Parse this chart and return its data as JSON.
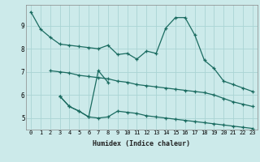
{
  "xlabel": "Humidex (Indice chaleur)",
  "bg_color": "#cceaea",
  "line_color": "#1a6b60",
  "grid_color": "#aad4d4",
  "xlim": [
    -0.5,
    23.5
  ],
  "ylim": [
    4.5,
    9.9
  ],
  "yticks": [
    5,
    6,
    7,
    8,
    9
  ],
  "xticks": [
    0,
    1,
    2,
    3,
    4,
    5,
    6,
    7,
    8,
    9,
    10,
    11,
    12,
    13,
    14,
    15,
    16,
    17,
    18,
    19,
    20,
    21,
    22,
    23
  ],
  "line1_x": [
    0,
    1,
    2,
    3,
    4,
    5,
    6,
    7,
    8,
    9,
    10,
    11,
    12,
    13,
    14,
    15,
    16,
    17,
    18,
    19,
    20,
    21,
    22,
    23
  ],
  "line1_y": [
    9.6,
    8.85,
    8.5,
    8.2,
    8.15,
    8.1,
    8.05,
    8.0,
    8.15,
    7.75,
    7.8,
    7.55,
    7.9,
    7.8,
    8.9,
    9.35,
    9.35,
    8.6,
    7.5,
    7.15,
    6.6,
    6.45,
    6.3,
    6.15
  ],
  "line2_x": [
    2,
    3,
    4,
    5,
    6,
    7,
    8,
    9,
    10,
    11,
    12,
    13,
    14,
    15,
    16,
    17,
    18,
    19,
    20,
    21,
    22,
    23
  ],
  "line2_y": [
    7.05,
    7.0,
    6.95,
    6.85,
    6.8,
    6.75,
    6.7,
    6.6,
    6.55,
    6.45,
    6.4,
    6.35,
    6.3,
    6.25,
    6.2,
    6.15,
    6.1,
    6.0,
    5.85,
    5.7,
    5.6,
    5.5
  ],
  "line3_x": [
    3,
    4,
    5,
    6,
    7,
    8,
    9,
    10,
    11,
    12,
    13,
    14,
    15,
    16,
    17,
    18,
    19,
    20,
    21,
    22,
    23
  ],
  "line3_y": [
    5.95,
    5.5,
    5.3,
    5.05,
    5.0,
    5.05,
    5.3,
    5.25,
    5.2,
    5.1,
    5.05,
    5.0,
    4.95,
    4.9,
    4.85,
    4.8,
    4.75,
    4.7,
    4.65,
    4.6,
    4.55
  ],
  "line4_x": [
    3,
    4,
    5,
    6,
    7,
    8
  ],
  "line4_y": [
    5.95,
    5.5,
    5.3,
    5.05,
    7.05,
    6.55
  ]
}
